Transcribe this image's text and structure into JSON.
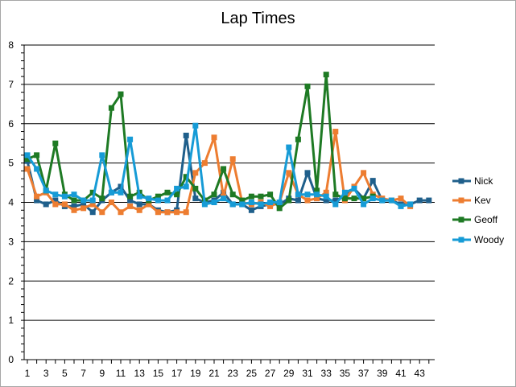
{
  "chart_data": {
    "type": "line",
    "title": "Lap Times",
    "xlabel": "",
    "ylabel": "",
    "ylim": [
      0,
      8
    ],
    "yticks": [
      0,
      1,
      2,
      3,
      4,
      5,
      6,
      7,
      8
    ],
    "xticks": [
      1,
      3,
      5,
      7,
      9,
      11,
      13,
      15,
      17,
      19,
      21,
      23,
      25,
      27,
      29,
      31,
      33,
      35,
      37,
      39,
      41,
      43
    ],
    "grid": true,
    "legend_position": "right",
    "series": [
      {
        "name": "Nick",
        "color": "#1f5f8b",
        "x": [
          1,
          2,
          3,
          4,
          5,
          6,
          7,
          8,
          9,
          10,
          11,
          12,
          13,
          14,
          15,
          16,
          17,
          18,
          19,
          20,
          21,
          22,
          23,
          24,
          25,
          26,
          27,
          28,
          29,
          30,
          31,
          32,
          33,
          34,
          35,
          36,
          37,
          38,
          39,
          40,
          41,
          42,
          43,
          44
        ],
        "values": [
          5.05,
          4.05,
          3.95,
          4.05,
          3.9,
          3.9,
          3.95,
          3.75,
          4.05,
          4.25,
          4.4,
          4.05,
          3.95,
          3.95,
          3.8,
          3.75,
          3.8,
          5.7,
          4.1,
          4.0,
          4.05,
          4.25,
          3.95,
          3.95,
          3.8,
          3.9,
          3.95,
          3.95,
          4.1,
          4.05,
          4.75,
          4.1,
          4.05,
          4.05,
          4.15,
          4.35,
          4.1,
          4.55,
          4.05,
          4.05,
          3.95,
          3.95,
          4.05,
          4.05
        ]
      },
      {
        "name": "Kev",
        "color": "#ed7d31",
        "x": [
          1,
          2,
          3,
          4,
          5,
          6,
          7,
          8,
          9,
          10,
          11,
          12,
          13,
          14,
          15,
          16,
          17,
          18,
          19,
          20,
          21,
          22,
          23,
          24,
          25,
          26,
          27,
          28,
          29,
          30,
          31,
          32,
          33,
          34,
          35,
          36,
          37,
          38,
          39,
          40,
          41,
          42
        ],
        "values": [
          4.85,
          4.15,
          4.25,
          3.95,
          3.95,
          3.8,
          3.85,
          3.95,
          3.75,
          4.0,
          3.75,
          3.9,
          3.8,
          3.95,
          3.75,
          3.75,
          3.75,
          3.75,
          4.75,
          5.0,
          5.65,
          4.15,
          5.1,
          4.0,
          3.95,
          4.0,
          3.9,
          4.0,
          4.75,
          4.2,
          4.05,
          4.1,
          4.25,
          5.8,
          4.05,
          4.4,
          4.75,
          4.2,
          4.1,
          4.05,
          4.1,
          3.9
        ]
      },
      {
        "name": "Geoff",
        "color": "#1e7a24",
        "x": [
          1,
          2,
          3,
          4,
          5,
          6,
          7,
          8,
          9,
          10,
          11,
          12,
          13,
          14,
          15,
          16,
          17,
          18,
          19,
          20,
          21,
          22,
          23,
          24,
          25,
          26,
          27,
          28,
          29,
          30,
          31,
          32,
          33,
          34,
          35,
          36,
          37,
          38
        ],
        "values": [
          5.1,
          5.2,
          4.3,
          5.5,
          4.2,
          4.05,
          4.05,
          4.25,
          4.1,
          6.4,
          6.75,
          4.15,
          4.25,
          4.05,
          4.15,
          4.25,
          4.2,
          4.65,
          4.35,
          4.05,
          4.2,
          4.85,
          4.2,
          4.05,
          4.15,
          4.15,
          4.2,
          3.85,
          4.05,
          5.6,
          6.95,
          4.3,
          7.25,
          4.2,
          4.1,
          4.1,
          4.1,
          4.15
        ]
      },
      {
        "name": "Woody",
        "color": "#169bd6",
        "x": [
          1,
          2,
          3,
          4,
          5,
          6,
          7,
          8,
          9,
          10,
          11,
          12,
          13,
          14,
          15,
          16,
          17,
          18,
          19,
          20,
          21,
          22,
          23,
          24,
          25,
          26,
          27,
          28,
          29,
          30,
          31,
          32,
          33,
          34,
          35,
          36,
          37,
          38,
          39,
          40,
          41,
          42
        ],
        "values": [
          5.2,
          4.85,
          4.3,
          4.2,
          4.15,
          4.2,
          4.05,
          4.05,
          5.2,
          4.25,
          4.25,
          5.6,
          4.15,
          4.1,
          4.05,
          4.05,
          4.35,
          4.4,
          5.95,
          3.95,
          4.0,
          4.1,
          3.95,
          3.95,
          4.0,
          3.95,
          4.0,
          4.0,
          5.4,
          4.2,
          4.2,
          4.2,
          4.15,
          3.95,
          4.25,
          4.35,
          3.95,
          4.1,
          4.05,
          4.05,
          3.9,
          3.95
        ]
      }
    ]
  }
}
